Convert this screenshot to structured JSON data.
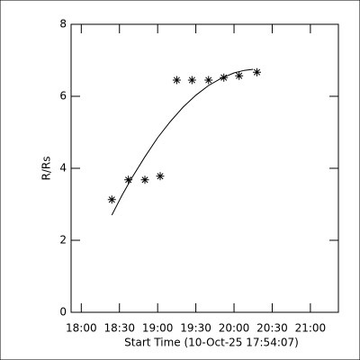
{
  "chart_data": {
    "type": "scatter",
    "x_label": "Start Time (10-Oct-25 17:54:07)",
    "y_label": "R/Rs",
    "xlim": [
      "17:52",
      "21:22"
    ],
    "xticks": [
      "18:00",
      "18:30",
      "19:00",
      "19:30",
      "20:00",
      "20:30",
      "21:00"
    ],
    "ylim": [
      0,
      8
    ],
    "yticks": [
      0,
      2,
      4,
      6,
      8
    ],
    "series": [
      {
        "color": "#000000",
        "marker": "asterisk",
        "x": [
          "18:24",
          "18:37",
          "18:50",
          "19:02",
          "19:15",
          "19:27",
          "19:40",
          "19:52",
          "20:04",
          "20:18"
        ],
        "values": [
          3.13,
          3.68,
          3.68,
          3.78,
          6.45,
          6.45,
          6.45,
          6.52,
          6.57,
          6.67
        ]
      }
    ],
    "fit": {
      "color": "#000000",
      "x": [
        "18:24",
        "18:32",
        "18:40",
        "18:50",
        "19:00",
        "19:10",
        "19:20",
        "19:30",
        "19:40",
        "19:50",
        "20:00",
        "20:08",
        "20:15"
      ],
      "values": [
        2.7,
        3.25,
        3.75,
        4.32,
        4.85,
        5.3,
        5.7,
        6.03,
        6.3,
        6.5,
        6.65,
        6.72,
        6.75
      ]
    }
  }
}
